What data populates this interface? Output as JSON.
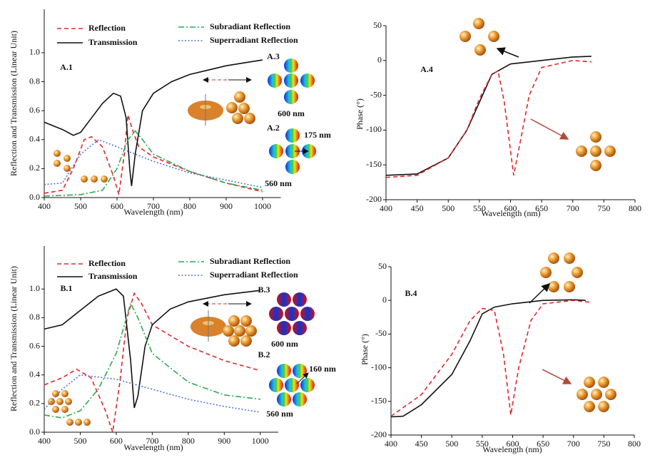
{
  "chart_data": [
    {
      "type": "line",
      "ylabel": "Reflection and Transmission (Linear Unit)",
      "xlabel": "Wavelength (nm)",
      "xlim": [
        400,
        1050
      ],
      "xticks": [
        400,
        500,
        600,
        700,
        800,
        900,
        1000
      ],
      "ylim": [
        0,
        1.3
      ],
      "yticks": [
        {
          "value": 0,
          "label": "0.0"
        },
        0.2,
        0.4,
        0.6,
        0.8,
        {
          "value": 1,
          "label": "1.0"
        }
      ],
      "annotations": [
        "A.1",
        "A.3",
        "600 nm",
        "A.2",
        "175 nm",
        "560 nm"
      ],
      "series": [
        {
          "name": "Reflection",
          "color": "#e0262b",
          "dash": "dashed",
          "x": [
            400,
            450,
            480,
            510,
            530,
            560,
            590,
            605,
            620,
            630,
            645,
            660,
            700,
            800,
            900,
            1000
          ],
          "values": [
            0.03,
            0.05,
            0.2,
            0.4,
            0.42,
            0.35,
            0.15,
            0.02,
            0.3,
            0.57,
            0.45,
            0.35,
            0.28,
            0.18,
            0.1,
            0.04
          ]
        },
        {
          "name": "Transmission",
          "color": "#111111",
          "dash": "solid",
          "x": [
            400,
            450,
            480,
            500,
            530,
            560,
            590,
            610,
            625,
            635,
            640,
            650,
            670,
            700,
            750,
            800,
            850,
            900,
            950,
            1000
          ],
          "values": [
            0.52,
            0.47,
            0.43,
            0.45,
            0.55,
            0.65,
            0.72,
            0.7,
            0.55,
            0.2,
            0.08,
            0.3,
            0.6,
            0.72,
            0.8,
            0.85,
            0.88,
            0.91,
            0.93,
            0.95
          ]
        },
        {
          "name": "Subradiant Reflection",
          "color": "#2ea84f",
          "dash": "dashdot",
          "x": [
            400,
            500,
            560,
            600,
            630,
            650,
            670,
            700,
            800,
            900,
            1000
          ],
          "values": [
            0.01,
            0.02,
            0.05,
            0.2,
            0.4,
            0.46,
            0.4,
            0.3,
            0.18,
            0.1,
            0.05
          ]
        },
        {
          "name": "Superradiant Reflection",
          "color": "#4f73d9",
          "dash": "dotted",
          "x": [
            400,
            450,
            500,
            550,
            600,
            650,
            700,
            800,
            900,
            1000
          ],
          "values": [
            0.09,
            0.1,
            0.3,
            0.4,
            0.35,
            0.3,
            0.25,
            0.17,
            0.12,
            0.07
          ]
        }
      ]
    },
    {
      "type": "line",
      "ylabel": "Phase (°)",
      "xlabel": "Wavelength (nm)",
      "xlim": [
        400,
        800
      ],
      "xticks": [
        400,
        450,
        500,
        550,
        600,
        650,
        700,
        750,
        800
      ],
      "ylim": [
        -200,
        50
      ],
      "yticks": [
        50,
        0,
        -50,
        -100,
        -150,
        -200
      ],
      "annotations": [
        "A.4"
      ],
      "series": [
        {
          "color": "#111111",
          "dash": "solid",
          "x": [
            400,
            450,
            500,
            530,
            550,
            570,
            600,
            650,
            700,
            730
          ],
          "values": [
            -165,
            -163,
            -140,
            -100,
            -60,
            -20,
            -5,
            0,
            5,
            6
          ]
        },
        {
          "color": "#e0262b",
          "dash": "dashed",
          "x": [
            400,
            450,
            500,
            530,
            550,
            570,
            580,
            590,
            605,
            615,
            630,
            650,
            700,
            730
          ],
          "values": [
            -168,
            -165,
            -140,
            -100,
            -55,
            -20,
            -15,
            -60,
            -165,
            -120,
            -50,
            -10,
            0,
            -2
          ]
        }
      ]
    },
    {
      "type": "line",
      "ylabel": "Reflection and Transmission (Linear Unit)",
      "xlabel": "Wavelength (nm)",
      "xlim": [
        400,
        1050
      ],
      "xticks": [
        400,
        500,
        600,
        700,
        800,
        900,
        1000
      ],
      "ylim": [
        0,
        1.3
      ],
      "yticks": [
        {
          "value": 0,
          "label": "0.0"
        },
        0.2,
        0.4,
        0.6,
        0.8,
        {
          "value": 1,
          "label": "1.0"
        }
      ],
      "annotations": [
        "B.1",
        "B.3",
        "600 nm",
        "B.2",
        "160 nm",
        "560 nm"
      ],
      "series": [
        {
          "name": "Reflection",
          "color": "#e0262b",
          "dash": "dashed",
          "x": [
            400,
            450,
            490,
            530,
            570,
            590,
            610,
            630,
            650,
            670,
            700,
            800,
            900,
            1000
          ],
          "values": [
            0.33,
            0.38,
            0.44,
            0.38,
            0.15,
            0,
            0.35,
            0.8,
            0.97,
            0.9,
            0.75,
            0.6,
            0.5,
            0.43
          ]
        },
        {
          "name": "Transmission",
          "color": "#111111",
          "dash": "solid",
          "x": [
            400,
            450,
            500,
            550,
            600,
            620,
            640,
            650,
            660,
            680,
            700,
            750,
            800,
            900,
            1000
          ],
          "values": [
            0.72,
            0.75,
            0.85,
            0.95,
            1,
            0.95,
            0.5,
            0.17,
            0.25,
            0.6,
            0.75,
            0.86,
            0.91,
            0.96,
            0.99
          ]
        },
        {
          "name": "Subradiant Reflection",
          "color": "#2ea84f",
          "dash": "dashdot",
          "x": [
            400,
            450,
            500,
            550,
            600,
            640,
            660,
            700,
            800,
            900,
            1000
          ],
          "values": [
            0.12,
            0.1,
            0.15,
            0.3,
            0.55,
            0.9,
            0.8,
            0.55,
            0.35,
            0.26,
            0.23
          ]
        },
        {
          "name": "Superradiant Reflection",
          "color": "#4f73d9",
          "dash": "dotted",
          "x": [
            400,
            450,
            500,
            600,
            700,
            800,
            900,
            1000
          ],
          "values": [
            0.16,
            0.3,
            0.4,
            0.37,
            0.3,
            0.23,
            0.18,
            0.14
          ]
        }
      ]
    },
    {
      "type": "line",
      "ylabel": "Phase (°)",
      "xlabel": "Wavelength (nm)",
      "xlim": [
        400,
        800
      ],
      "xticks": [
        400,
        450,
        500,
        550,
        600,
        650,
        700,
        750,
        800
      ],
      "ylim": [
        -200,
        50
      ],
      "yticks": [
        50,
        0,
        -50,
        -100,
        -150,
        -200
      ],
      "annotations": [
        "B.4"
      ],
      "series": [
        {
          "color": "#111111",
          "dash": "solid",
          "x": [
            400,
            420,
            450,
            500,
            530,
            550,
            570,
            600,
            650,
            700,
            720
          ],
          "values": [
            -173,
            -172,
            -155,
            -110,
            -60,
            -20,
            -10,
            -5,
            0,
            1,
            0
          ]
        },
        {
          "color": "#e0262b",
          "dash": "dashed",
          "x": [
            400,
            450,
            500,
            530,
            550,
            570,
            585,
            597,
            610,
            630,
            650,
            700,
            730
          ],
          "values": [
            -172,
            -140,
            -80,
            -30,
            -12,
            -15,
            -80,
            -170,
            -100,
            -30,
            -5,
            0,
            -3
          ]
        }
      ]
    }
  ]
}
